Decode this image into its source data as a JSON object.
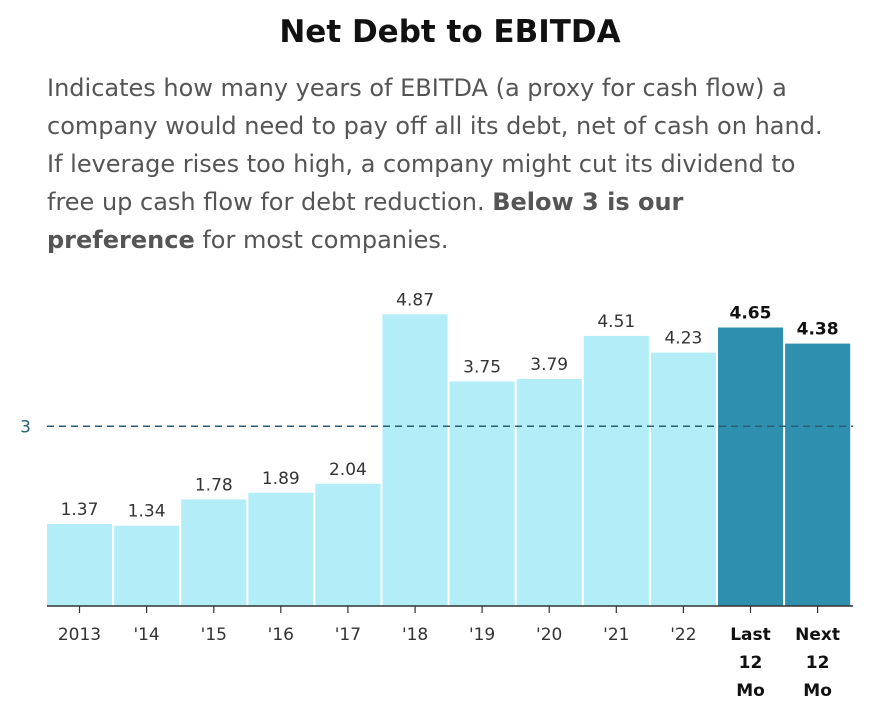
{
  "title": "Net Debt to EBITDA",
  "description": {
    "text_before": "Indicates how many years of EBITDA (a proxy for cash flow) a company would need to pay off all its debt, net of cash on hand. If leverage rises too high, a company might cut its dividend to free up cash flow for debt reduction. ",
    "bold": "Below 3 is our preference",
    "text_after": " for most companies."
  },
  "colors": {
    "historical_bar": "#b3eef8",
    "highlight_bar": "#2f8fae",
    "reference_line": "#2a5d78",
    "axis": "#333333",
    "value_label": "#333333",
    "highlight_label": "#111111"
  },
  "chart_data": {
    "type": "bar",
    "title": "Net Debt to EBITDA",
    "categories": [
      "2013",
      "'14",
      "'15",
      "'16",
      "'17",
      "'18",
      "'19",
      "'20",
      "'21",
      "'22",
      "Last 12 Mo",
      "Next 12 Mo"
    ],
    "category_lines": [
      [
        "2013"
      ],
      [
        "'14"
      ],
      [
        "'15"
      ],
      [
        "'16"
      ],
      [
        "'17"
      ],
      [
        "'18"
      ],
      [
        "'19"
      ],
      [
        "'20"
      ],
      [
        "'21"
      ],
      [
        "'22"
      ],
      [
        "Last",
        "12",
        "Mo"
      ],
      [
        "Next",
        "12",
        "Mo"
      ]
    ],
    "values": [
      1.37,
      1.34,
      1.78,
      1.89,
      2.04,
      4.87,
      3.75,
      3.79,
      4.51,
      4.23,
      4.65,
      4.38
    ],
    "value_labels": [
      "1.37",
      "1.34",
      "1.78",
      "1.89",
      "2.04",
      "4.87",
      "3.75",
      "3.79",
      "4.51",
      "4.23",
      "4.65",
      "4.38"
    ],
    "highlighted": [
      false,
      false,
      false,
      false,
      false,
      false,
      false,
      false,
      false,
      false,
      true,
      true
    ],
    "reference_line": {
      "value": 3,
      "label": "3",
      "style": "dashed"
    },
    "ylim": [
      0,
      5
    ],
    "xlabel": "",
    "ylabel": "",
    "grid": false,
    "legend": "none"
  }
}
